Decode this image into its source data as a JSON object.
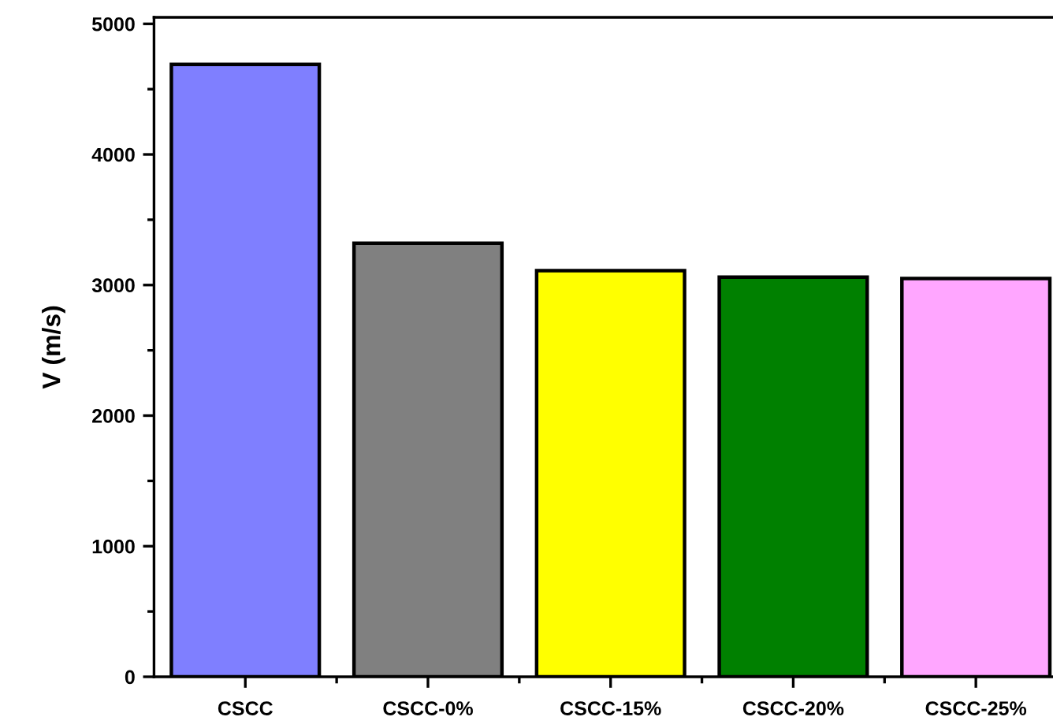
{
  "chart_data": {
    "type": "bar",
    "ylabel": "V (m/s)",
    "categories": [
      "CSCC",
      "CSCC-0%",
      "CSCC-15%",
      "CSCC-20%",
      "CSCC-25%"
    ],
    "values": [
      4690,
      3320,
      3110,
      3060,
      3050
    ],
    "colors": [
      "#7f7fff",
      "#808080",
      "#ffff00",
      "#008000",
      "#ffa6ff"
    ],
    "ylim": [
      0,
      5050
    ],
    "yticks": [
      0,
      1000,
      2000,
      3000,
      4000,
      5000
    ]
  }
}
